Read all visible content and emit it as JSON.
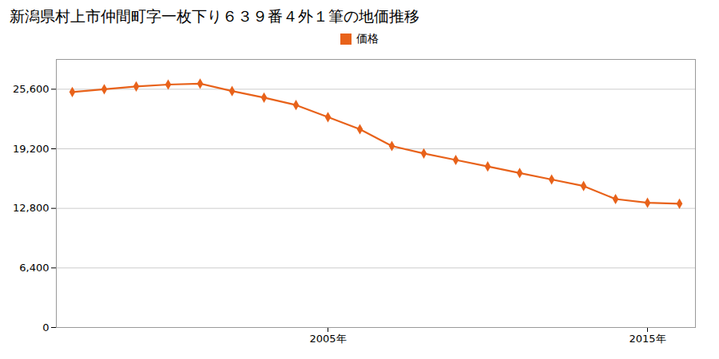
{
  "chart_data": {
    "type": "line",
    "title": "新潟県村上市仲間町字一枚下り６３９番４外１筆の地価推移",
    "x": [
      1997,
      1998,
      1999,
      2000,
      2001,
      2002,
      2003,
      2004,
      2005,
      2006,
      2007,
      2008,
      2009,
      2010,
      2011,
      2012,
      2013,
      2014,
      2015,
      2016
    ],
    "series": [
      {
        "name": "価格",
        "color": "#E8621A",
        "marker": "diamond",
        "values": [
          25300,
          25600,
          25900,
          26100,
          26200,
          25400,
          24700,
          23900,
          22600,
          21300,
          19500,
          18700,
          18000,
          17300,
          16600,
          15900,
          15200,
          13800,
          13400,
          13300
        ]
      }
    ],
    "xlim": [
      1996.5,
      2016.5
    ],
    "xticks": [
      {
        "value": 2005,
        "label": "2005年"
      },
      {
        "value": 2015,
        "label": "2015年"
      }
    ],
    "ylim": [
      0,
      28800
    ],
    "yticks": [
      0,
      {
        "value": 6400,
        "label": "6,400"
      },
      {
        "value": 12800,
        "label": "12,800"
      },
      {
        "value": 19200,
        "label": "19,200"
      },
      {
        "value": 25600,
        "label": "25,600"
      }
    ],
    "grid": true,
    "legend": "top"
  }
}
